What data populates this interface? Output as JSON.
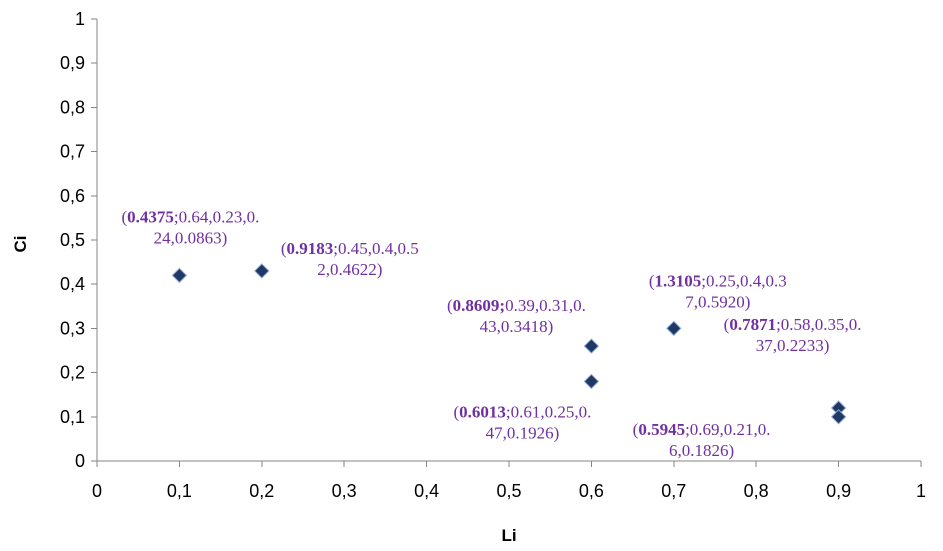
{
  "chart_data": {
    "type": "scatter",
    "xlabel": "Li",
    "ylabel": "Ci",
    "xlim": [
      0,
      1
    ],
    "ylim": [
      0,
      1
    ],
    "x_ticks": [
      "0",
      "0,1",
      "0,2",
      "0,3",
      "0,4",
      "0,5",
      "0,6",
      "0,7",
      "0,8",
      "0,9",
      "1"
    ],
    "y_ticks": [
      "0",
      "0,1",
      "0,2",
      "0,3",
      "0,4",
      "0,5",
      "0,6",
      "0,7",
      "0,8",
      "0,9",
      "1"
    ],
    "grid": false,
    "legend": "none",
    "marker_color": "#1f3864",
    "label_color": "#7030a0",
    "points": [
      {
        "x": 0.1,
        "y": 0.42,
        "label_bold": "0.4375",
        "label_lines": [
          ";0.64,0.23,0.",
          "24,0.0863)"
        ]
      },
      {
        "x": 0.2,
        "y": 0.43,
        "label_bold": "0.9183",
        "label_lines": [
          ";0.45,0.4,0.5",
          "2,0.4622)"
        ]
      },
      {
        "x": 0.6,
        "y": 0.26,
        "label_bold": "0.8609;",
        "label_lines": [
          "0.39,0.31,0.",
          "43,0.3418)"
        ]
      },
      {
        "x": 0.6,
        "y": 0.18,
        "label_bold": "0.6013",
        "label_lines": [
          ";0.61,0.25,0.",
          "47,0.1926)"
        ]
      },
      {
        "x": 0.7,
        "y": 0.3,
        "label_bold": "1.3105",
        "label_lines": [
          ";0.25,0.4,0.3",
          "7,0.5920)"
        ]
      },
      {
        "x": 0.9,
        "y": 0.12,
        "label_bold": "0.7871",
        "label_lines": [
          ";0.58,0.35,0.",
          "37,0.2233)"
        ]
      },
      {
        "x": 0.9,
        "y": 0.1,
        "label_bold": "0.5945",
        "label_lines": [
          ";0.69,0.21,0.",
          "6,0.1826)"
        ]
      }
    ]
  }
}
